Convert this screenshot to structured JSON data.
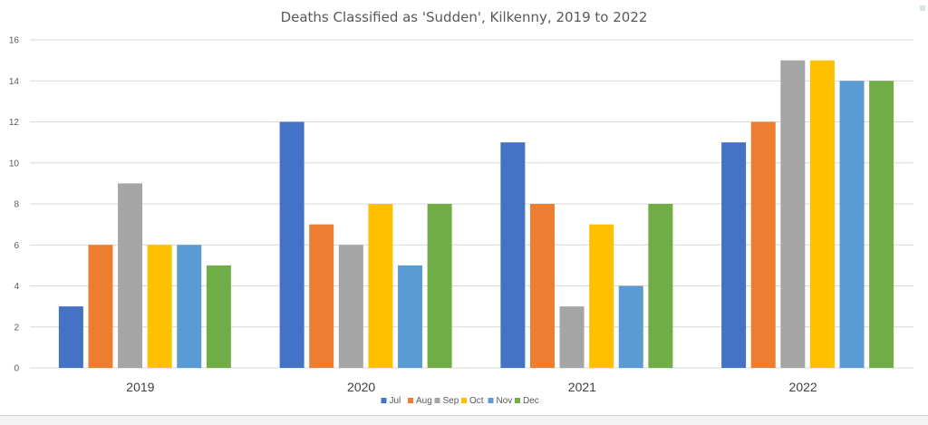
{
  "chart_data": {
    "type": "bar",
    "title": "Deaths Classified as 'Sudden', Kilkenny, 2019 to 2022",
    "categories": [
      "2019",
      "2020",
      "2021",
      "2022"
    ],
    "series": [
      {
        "name": "Jul",
        "color": "#4472C4",
        "values": [
          3,
          12,
          11,
          11
        ]
      },
      {
        "name": "Aug",
        "color": "#ED7D31",
        "values": [
          6,
          7,
          8,
          12
        ]
      },
      {
        "name": "Sep",
        "color": "#A5A5A5",
        "values": [
          9,
          6,
          3,
          15
        ]
      },
      {
        "name": "Oct",
        "color": "#FFC000",
        "values": [
          6,
          8,
          7,
          15
        ]
      },
      {
        "name": "Nov",
        "color": "#5B9BD5",
        "values": [
          6,
          5,
          4,
          14
        ]
      },
      {
        "name": "Dec",
        "color": "#70AD47",
        "values": [
          5,
          8,
          8,
          14
        ]
      }
    ],
    "yticks": [
      "0",
      "2",
      "4",
      "6",
      "8",
      "10",
      "12",
      "14",
      "16"
    ],
    "ylim": [
      0,
      16
    ],
    "xlabel": "",
    "ylabel": "",
    "legend": "bottom",
    "grid": true
  }
}
